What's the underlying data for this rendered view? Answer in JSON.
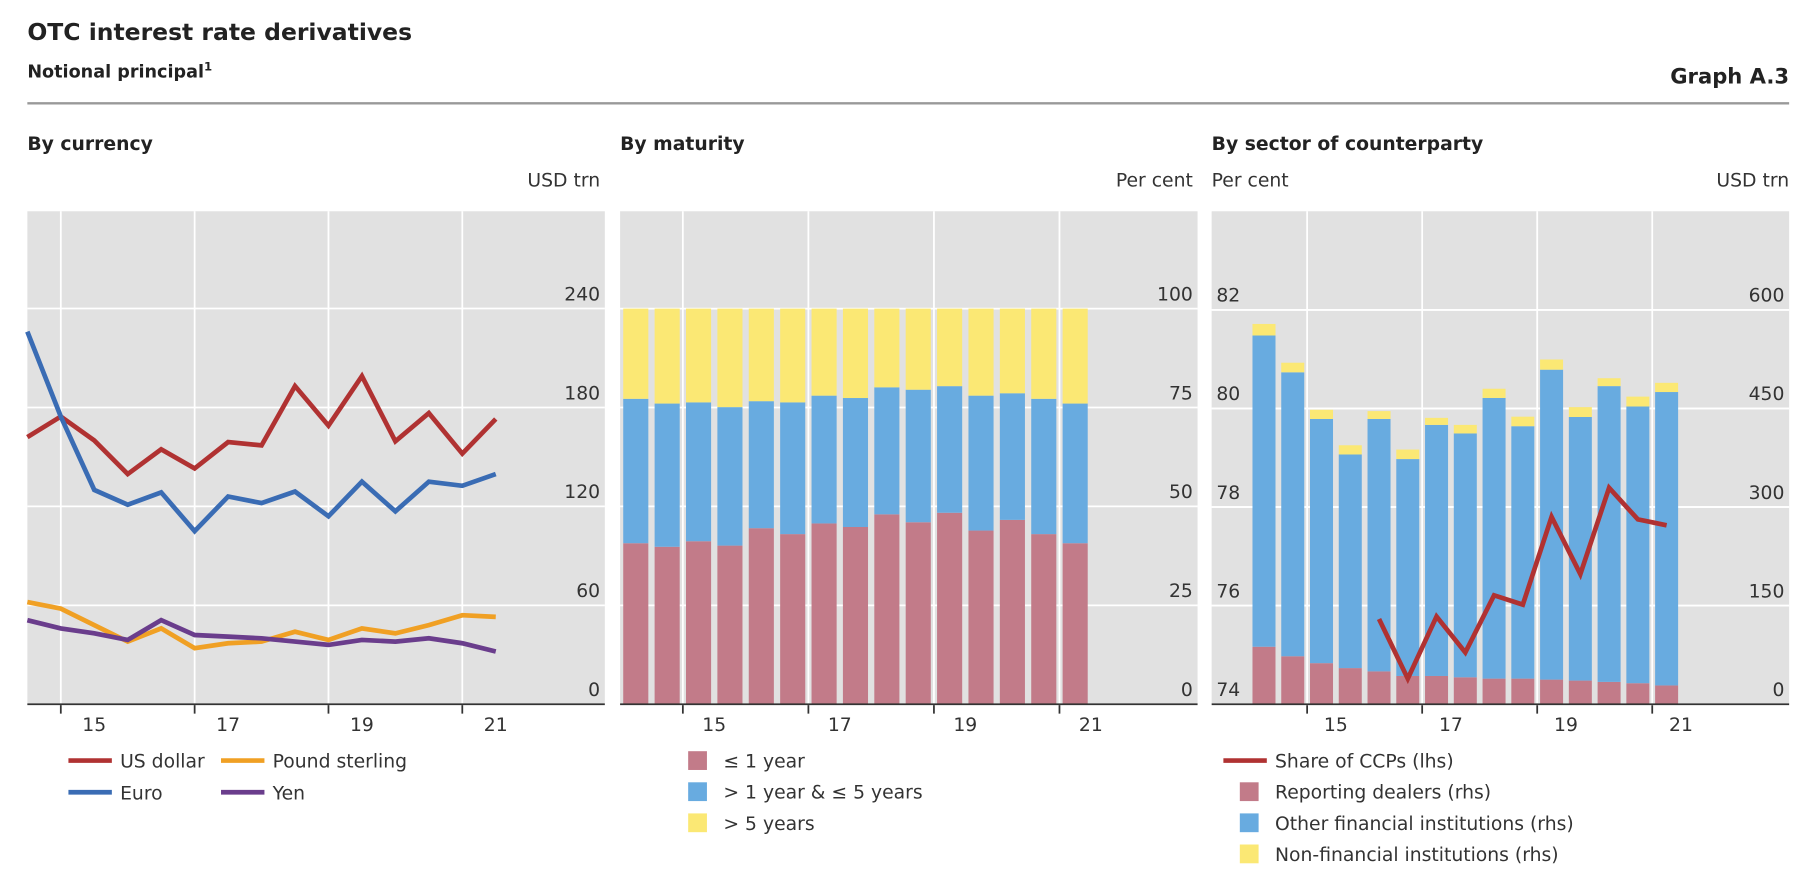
{
  "header": {
    "title": "OTC interest rate derivatives",
    "subtitle": "Notional principal",
    "footnote_mark": "1",
    "graph_label": "Graph A.3"
  },
  "chart_data": [
    {
      "type": "line",
      "title": "By currency",
      "y_label": "USD trn",
      "x": [
        14,
        14.5,
        15,
        15.5,
        16,
        16.5,
        17,
        17.5,
        18,
        18.5,
        19,
        19.5,
        20,
        20.5,
        21
      ],
      "xlim": [
        14,
        22.63
      ],
      "xticks": [
        15,
        17,
        19,
        21
      ],
      "ylim": [
        0,
        299
      ],
      "yticks": [
        0,
        60,
        120,
        180,
        240
      ],
      "grid": true,
      "series": [
        {
          "name": "US dollar",
          "color": "#b03232",
          "values": [
            162,
            174.5,
            160,
            139.6,
            154.6,
            143,
            159,
            157,
            193,
            169,
            199,
            159.5,
            176.6,
            152,
            173
          ]
        },
        {
          "name": "Euro",
          "color": "#3a6cb4",
          "values": [
            226,
            174.5,
            130,
            121,
            128.5,
            105,
            126,
            122,
            129,
            114,
            135,
            117,
            135,
            132.5,
            139.6
          ]
        },
        {
          "name": "Pound sterling",
          "color": "#f0a024",
          "values": [
            62,
            58,
            48,
            38,
            46,
            34,
            37,
            38,
            44,
            39,
            46,
            43,
            48,
            54,
            53
          ]
        },
        {
          "name": "Yen",
          "color": "#6a3d8c",
          "values": [
            51,
            46,
            43,
            39,
            51,
            42,
            41,
            40,
            38,
            36,
            39,
            38,
            40,
            37,
            32
          ]
        }
      ]
    },
    {
      "type": "stacked_bar",
      "title": "By maturity",
      "y_label": "Per cent",
      "x": [
        13.75,
        14.25,
        14.75,
        15.25,
        15.75,
        16.25,
        16.75,
        17.25,
        17.75,
        18.25,
        18.75,
        19.25,
        19.75,
        20.25,
        20.75
      ],
      "xlim": [
        13.5,
        22.7
      ],
      "xticks": [
        15,
        17,
        19,
        21
      ],
      "ylim": [
        0,
        124.6
      ],
      "yticks": [
        0,
        25,
        50,
        75,
        100
      ],
      "grid": true,
      "series": [
        {
          "name": "≤ 1 year",
          "color": "#c27b89",
          "values": [
            40.7,
            39.8,
            41.2,
            40.1,
            44.5,
            43,
            45.7,
            44.8,
            48,
            46,
            48.4,
            43.9,
            46.6,
            43,
            40.7
          ]
        },
        {
          "name": "> 1 year & ≤ 5 years",
          "color": "#68abe0",
          "values": [
            36.5,
            36.2,
            35.1,
            35,
            32.1,
            33.3,
            32.3,
            32.6,
            32.1,
            33.5,
            32,
            34.1,
            32,
            34.2,
            35.3
          ]
        },
        {
          "name": "> 5 years",
          "color": "#fbe874",
          "values": [
            22.8,
            24,
            23.7,
            24.9,
            23.4,
            23.7,
            22,
            22.6,
            19.9,
            20.5,
            19.6,
            22,
            21.4,
            22.8,
            24
          ]
        }
      ]
    },
    {
      "type": "combo",
      "title": "By sector of counterparty",
      "y_label": "Per cent",
      "y2_label": "USD trn",
      "x": [
        13.75,
        14.25,
        14.75,
        15.25,
        15.75,
        16.25,
        16.75,
        17.25,
        17.75,
        18.25,
        18.75,
        19.25,
        19.75,
        20.25,
        20.75
      ],
      "xlim": [
        12.84,
        22.88
      ],
      "xticks": [
        15,
        17,
        19,
        21
      ],
      "ylim": [
        74,
        84
      ],
      "yticks": [
        74,
        76,
        78,
        80,
        82
      ],
      "y2lim": [
        0,
        750
      ],
      "y2ticks": [
        0,
        150,
        300,
        450,
        600
      ],
      "grid": true,
      "series": [
        {
          "name": "Share of CCPs (lhs)",
          "type": "line",
          "color": "#b03232",
          "values": [
            null,
            null,
            null,
            null,
            75.73,
            74.52,
            75.78,
            75.05,
            76.21,
            76.02,
            77.8,
            76.64,
            78.39,
            77.75,
            77.63
          ]
        },
        {
          "name": "Reporting dealers (rhs)",
          "type": "bar",
          "axis": "y2",
          "color": "#c27b89",
          "values": [
            87.5,
            73,
            62.5,
            55,
            50,
            43,
            43,
            41,
            39,
            39,
            37.5,
            36,
            34,
            32,
            28.6
          ]
        },
        {
          "name": "Other financial institutions (rhs)",
          "type": "bar",
          "axis": "y2",
          "color": "#68abe0",
          "values": [
            473.5,
            432,
            371.5,
            325,
            384,
            330,
            382,
            371,
            427,
            384,
            471.5,
            401,
            450,
            421,
            446.4
          ]
        },
        {
          "name": "Non-financial institutions (rhs)",
          "type": "bar",
          "axis": "y2",
          "color": "#fbe874",
          "values": [
            17.6,
            14.6,
            14,
            14,
            12,
            14.5,
            10.7,
            13,
            14,
            14.5,
            15.5,
            15,
            12,
            15,
            14
          ]
        }
      ]
    }
  ]
}
